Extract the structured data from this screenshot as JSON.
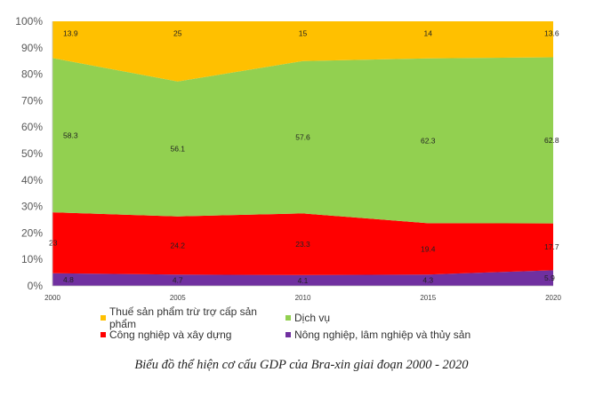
{
  "chart_data": {
    "type": "area",
    "stacking": "percent",
    "title": "Biểu đồ thể hiện cơ cấu GDP của Bra-xin giai đoạn 2000 - 2020",
    "xlabel": "",
    "ylabel": "",
    "categories": [
      "2000",
      "2005",
      "2010",
      "2015",
      "2020"
    ],
    "ylim": [
      0,
      100
    ],
    "yticks": [
      "0%",
      "10%",
      "20%",
      "30%",
      "40%",
      "50%",
      "60%",
      "70%",
      "80%",
      "90%",
      "100%"
    ],
    "grid": false,
    "legend_position": "bottom",
    "series": [
      {
        "name": "Nông nghiệp, lâm nghiệp và thủy sản",
        "color": "#7030A0",
        "values": [
          4.8,
          4.7,
          4.1,
          4.3,
          5.9
        ]
      },
      {
        "name": "Công nghiệp và xây dựng",
        "color": "#FF0000",
        "values": [
          23,
          24.2,
          23.3,
          19.4,
          17.7
        ]
      },
      {
        "name": "Dịch vụ",
        "color": "#92D050",
        "values": [
          58.3,
          56.1,
          57.6,
          62.3,
          62.8
        ]
      },
      {
        "name": "Thuế sản phẩm trừ trợ cấp sản phẩm",
        "color": "#FFC000",
        "values": [
          13.9,
          25,
          15,
          14,
          13.6
        ]
      }
    ]
  },
  "legend": {
    "items": [
      {
        "label": "Thuế sản phẩm trừ trợ cấp sản phẩm",
        "color": "#FFC000"
      },
      {
        "label": "Dịch vụ",
        "color": "#92D050"
      },
      {
        "label": "Công nghiệp và xây dựng",
        "color": "#FF0000"
      },
      {
        "label": "Nông nghiệp, lâm nghiệp và thủy sản",
        "color": "#7030A0"
      }
    ]
  },
  "caption": "Biểu đồ thể hiện cơ cấu GDP của Bra-xin giai đoạn 2000 - 2020"
}
